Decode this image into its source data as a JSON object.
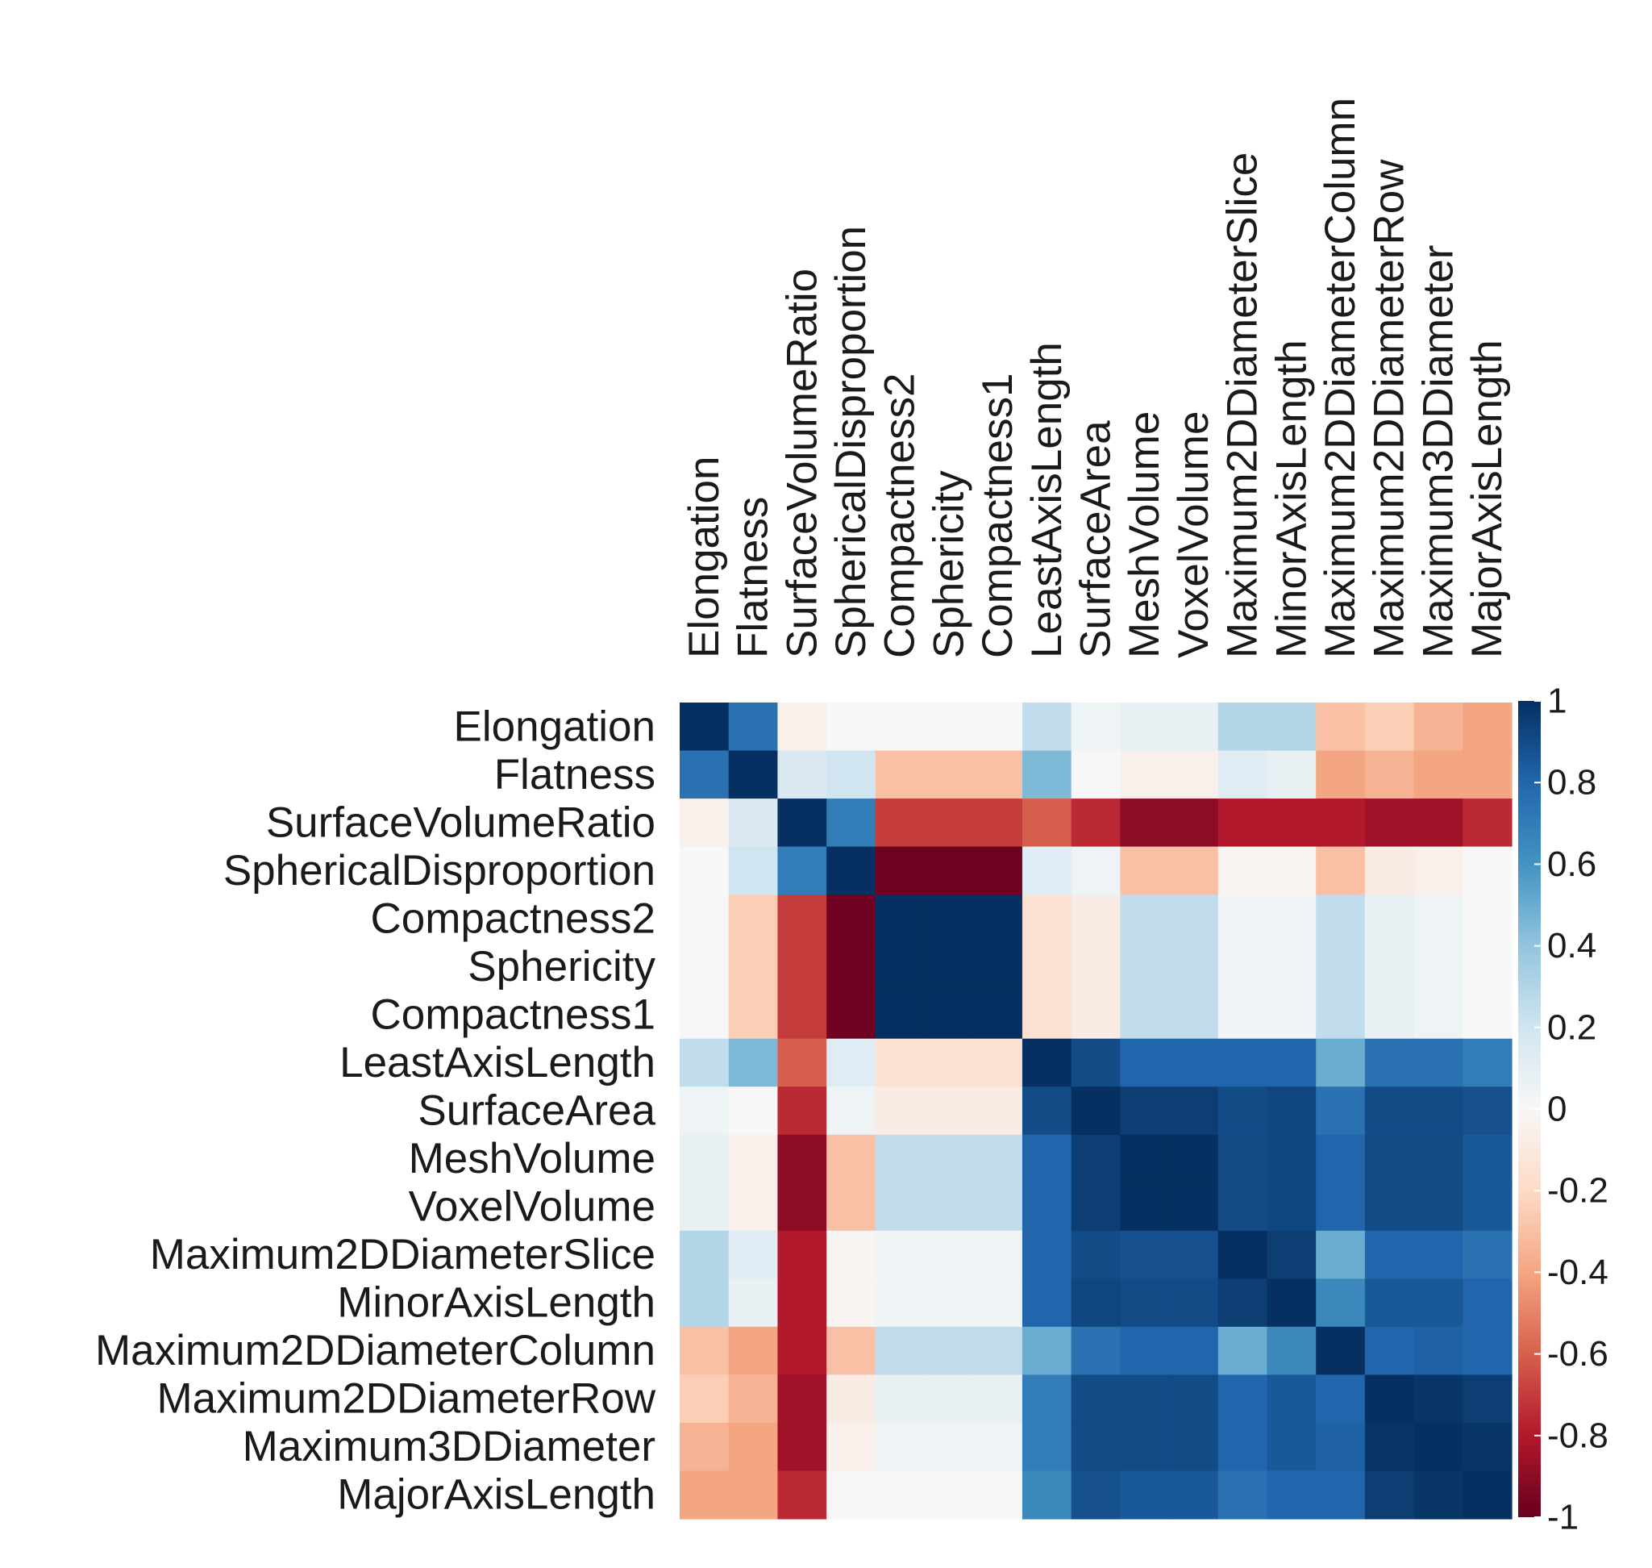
{
  "chart_data": {
    "type": "heatmap",
    "title": "",
    "labels": [
      "Elongation",
      "Flatness",
      "SurfaceVolumeRatio",
      "SphericalDisproportion",
      "Compactness2",
      "Sphericity",
      "Compactness1",
      "LeastAxisLength",
      "SurfaceArea",
      "MeshVolume",
      "VoxelVolume",
      "Maximum2DDiameterSlice",
      "MinorAxisLength",
      "Maximum2DDiameterColumn",
      "Maximum2DDiameterRow",
      "Maximum3DDiameter",
      "MajorAxisLength"
    ],
    "matrix": [
      [
        1,
        0.75,
        -0.05,
        0,
        0,
        0,
        0,
        0.25,
        0.05,
        0.08,
        0.08,
        0.3,
        0.3,
        -0.3,
        -0.25,
        -0.35,
        -0.4
      ],
      [
        0.75,
        1,
        0.15,
        0.2,
        -0.3,
        -0.3,
        -0.3,
        0.45,
        0,
        -0.05,
        -0.05,
        0.12,
        0.08,
        -0.4,
        -0.35,
        -0.4,
        -0.4
      ],
      [
        -0.05,
        0.15,
        1,
        0.7,
        -0.7,
        -0.7,
        -0.7,
        -0.6,
        -0.75,
        -0.9,
        -0.9,
        -0.8,
        -0.8,
        -0.8,
        -0.85,
        -0.85,
        -0.75
      ],
      [
        0,
        0.2,
        0.7,
        1,
        -0.98,
        -0.98,
        -0.98,
        0.12,
        0.05,
        -0.3,
        -0.3,
        -0.02,
        -0.02,
        -0.3,
        -0.08,
        -0.05,
        0
      ],
      [
        0,
        -0.25,
        -0.7,
        -0.98,
        1,
        1,
        1,
        -0.15,
        -0.08,
        0.25,
        0.25,
        0.03,
        0.03,
        0.25,
        0.08,
        0.05,
        0
      ],
      [
        0,
        -0.25,
        -0.7,
        -0.98,
        1,
        1,
        1,
        -0.15,
        -0.08,
        0.25,
        0.25,
        0.03,
        0.03,
        0.25,
        0.08,
        0.05,
        0
      ],
      [
        0,
        -0.25,
        -0.7,
        -0.98,
        1,
        1,
        1,
        -0.15,
        -0.08,
        0.25,
        0.25,
        0.03,
        0.03,
        0.25,
        0.08,
        0.05,
        0
      ],
      [
        0.25,
        0.45,
        -0.6,
        0.12,
        -0.15,
        -0.15,
        -0.15,
        1,
        0.9,
        0.8,
        0.8,
        0.8,
        0.8,
        0.5,
        0.75,
        0.75,
        0.7
      ],
      [
        0.05,
        0,
        -0.75,
        0.05,
        -0.08,
        -0.08,
        -0.08,
        0.9,
        1,
        0.95,
        0.95,
        0.9,
        0.92,
        0.75,
        0.9,
        0.9,
        0.88
      ],
      [
        0.08,
        -0.05,
        -0.9,
        -0.3,
        0.25,
        0.25,
        0.25,
        0.8,
        0.95,
        1,
        1,
        0.9,
        0.92,
        0.8,
        0.9,
        0.9,
        0.85
      ],
      [
        0.08,
        -0.05,
        -0.9,
        -0.3,
        0.25,
        0.25,
        0.25,
        0.8,
        0.95,
        1,
        1,
        0.9,
        0.92,
        0.8,
        0.9,
        0.9,
        0.85
      ],
      [
        0.3,
        0.12,
        -0.8,
        -0.02,
        0.03,
        0.03,
        0.03,
        0.8,
        0.9,
        0.88,
        0.88,
        1,
        0.95,
        0.5,
        0.8,
        0.8,
        0.75
      ],
      [
        0.3,
        0.08,
        -0.8,
        -0.02,
        0.03,
        0.03,
        0.03,
        0.8,
        0.92,
        0.9,
        0.9,
        0.95,
        1,
        0.65,
        0.85,
        0.85,
        0.8
      ],
      [
        -0.3,
        -0.4,
        -0.8,
        -0.3,
        0.25,
        0.25,
        0.25,
        0.5,
        0.75,
        0.8,
        0.8,
        0.5,
        0.65,
        1,
        0.8,
        0.82,
        0.8
      ],
      [
        -0.25,
        -0.35,
        -0.85,
        -0.08,
        0.08,
        0.08,
        0.08,
        0.7,
        0.9,
        0.9,
        0.9,
        0.8,
        0.85,
        0.8,
        1,
        0.98,
        0.95
      ],
      [
        -0.35,
        -0.4,
        -0.85,
        -0.05,
        0.05,
        0.05,
        0.05,
        0.7,
        0.9,
        0.9,
        0.9,
        0.8,
        0.85,
        0.82,
        0.98,
        1,
        0.98
      ],
      [
        -0.4,
        -0.4,
        -0.75,
        0,
        0,
        0,
        0,
        0.65,
        0.88,
        0.85,
        0.85,
        0.75,
        0.8,
        0.8,
        0.95,
        0.98,
        1
      ]
    ],
    "colorbar": {
      "range": [
        -1,
        1
      ],
      "ticks": [
        "1",
        "0.8",
        "0.6",
        "0.4",
        "0.2",
        "0",
        "-0.2",
        "-0.4",
        "-0.6",
        "-0.8",
        "-1"
      ],
      "tick_values": [
        1,
        0.8,
        0.6,
        0.4,
        0.2,
        0,
        -0.2,
        -0.4,
        -0.6,
        -0.8,
        -1
      ],
      "colors": [
        "#67001f",
        "#b2182b",
        "#d6604d",
        "#f4a582",
        "#fddbc7",
        "#f7f7f7",
        "#d1e5f0",
        "#92c5de",
        "#4393c3",
        "#2166ac",
        "#053061"
      ]
    }
  }
}
